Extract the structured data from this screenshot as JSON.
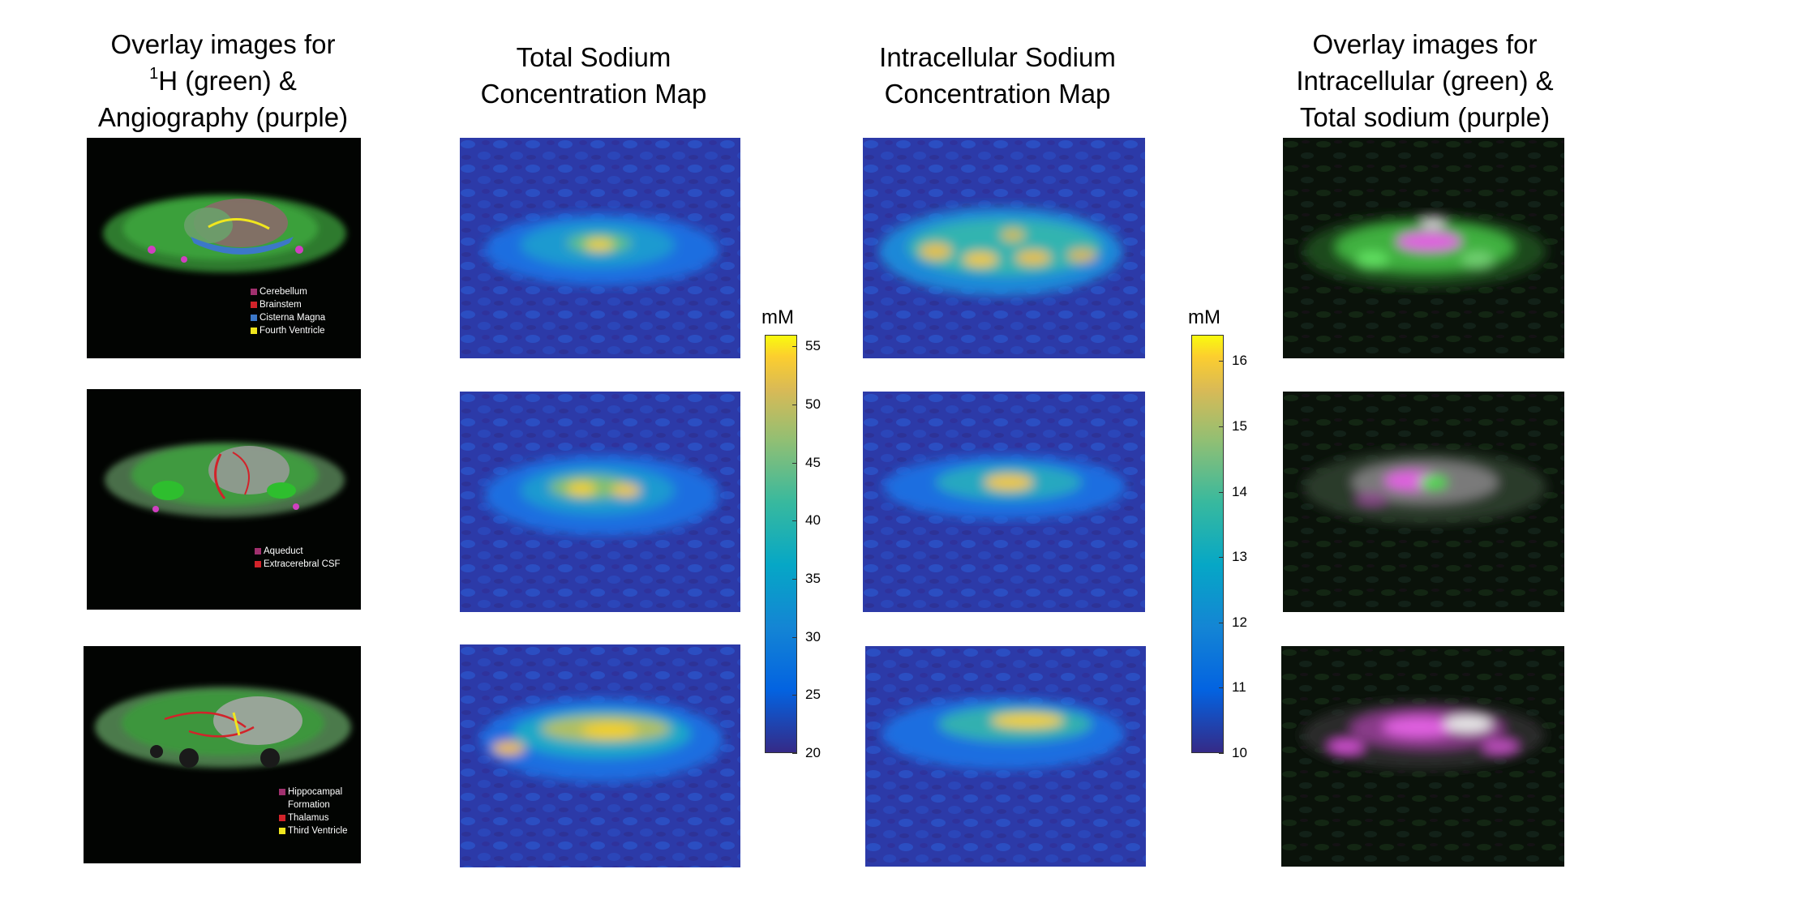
{
  "columns": {
    "col1": {
      "line1": "Overlay images for",
      "line2_sup": "1",
      "line2_rest": "H (green) &",
      "line3": "Angiography (purple)"
    },
    "col2": {
      "line1": "Total Sodium",
      "line2": "Concentration Map"
    },
    "col3": {
      "line1": "Intracellular Sodium",
      "line2": "Concentration Map"
    },
    "col4": {
      "line1": "Overlay images for",
      "line2": "Intracellular (green) &",
      "line3": "Total sodium (purple)"
    }
  },
  "legends": {
    "row1": [
      {
        "label": "Cerebellum",
        "color": "#a0306e"
      },
      {
        "label": "Brainstem",
        "color": "#d2232a"
      },
      {
        "label": "Cisterna Magna",
        "color": "#3c78c8"
      },
      {
        "label": "Fourth Ventricle",
        "color": "#f0e61e"
      }
    ],
    "row2": [
      {
        "label": "Aqueduct",
        "color": "#a0306e"
      },
      {
        "label": "Extracerebral CSF",
        "color": "#d2232a"
      }
    ],
    "row3": [
      {
        "label": "Hippocampal",
        "label2": "Formation",
        "color": "#a0306e"
      },
      {
        "label": "Thalamus",
        "color": "#d2232a"
      },
      {
        "label": "Third Ventricle",
        "color": "#f0e61e"
      }
    ]
  },
  "colorbars": {
    "total": {
      "unit": "mM",
      "ticks": [
        "55",
        "50",
        "45",
        "40",
        "35",
        "30",
        "25",
        "20"
      ]
    },
    "intracellular": {
      "unit": "mM",
      "ticks": [
        "16",
        "15",
        "14",
        "13",
        "12",
        "11",
        "10"
      ]
    }
  },
  "colors": {
    "parula_low": "#352a87",
    "parula_mid": "#1fb4c0",
    "parula_high": "#f9fb0e",
    "overlay_green": "#3cc83c",
    "overlay_purple": "#e050e0"
  }
}
